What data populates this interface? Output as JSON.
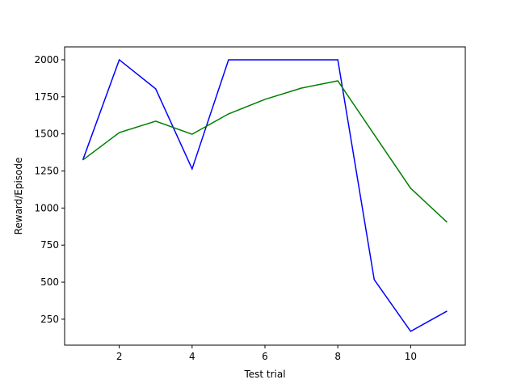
{
  "chart_data": {
    "type": "line",
    "x": [
      1,
      2,
      3,
      4,
      5,
      6,
      7,
      8,
      9,
      10,
      11
    ],
    "series": [
      {
        "color": "#0000ff",
        "values": [
          1324,
          2000,
          1804,
          1264,
          2000,
          2000,
          2000,
          2000,
          517,
          168,
          305
        ]
      },
      {
        "color": "#008000",
        "values": [
          1324,
          1509,
          1586,
          1498,
          1635,
          1733,
          1809,
          1858,
          1495,
          1133,
          904
        ]
      }
    ],
    "xlabel": "Test trial",
    "ylabel": "Reward/Episode",
    "xlim": [
      0.5,
      11.5
    ],
    "xticks": [
      2,
      4,
      6,
      8,
      10
    ],
    "ylim": [
      75,
      2087
    ],
    "yticks": [
      250,
      500,
      750,
      1000,
      1250,
      1500,
      1750,
      2000
    ],
    "grid": false
  }
}
